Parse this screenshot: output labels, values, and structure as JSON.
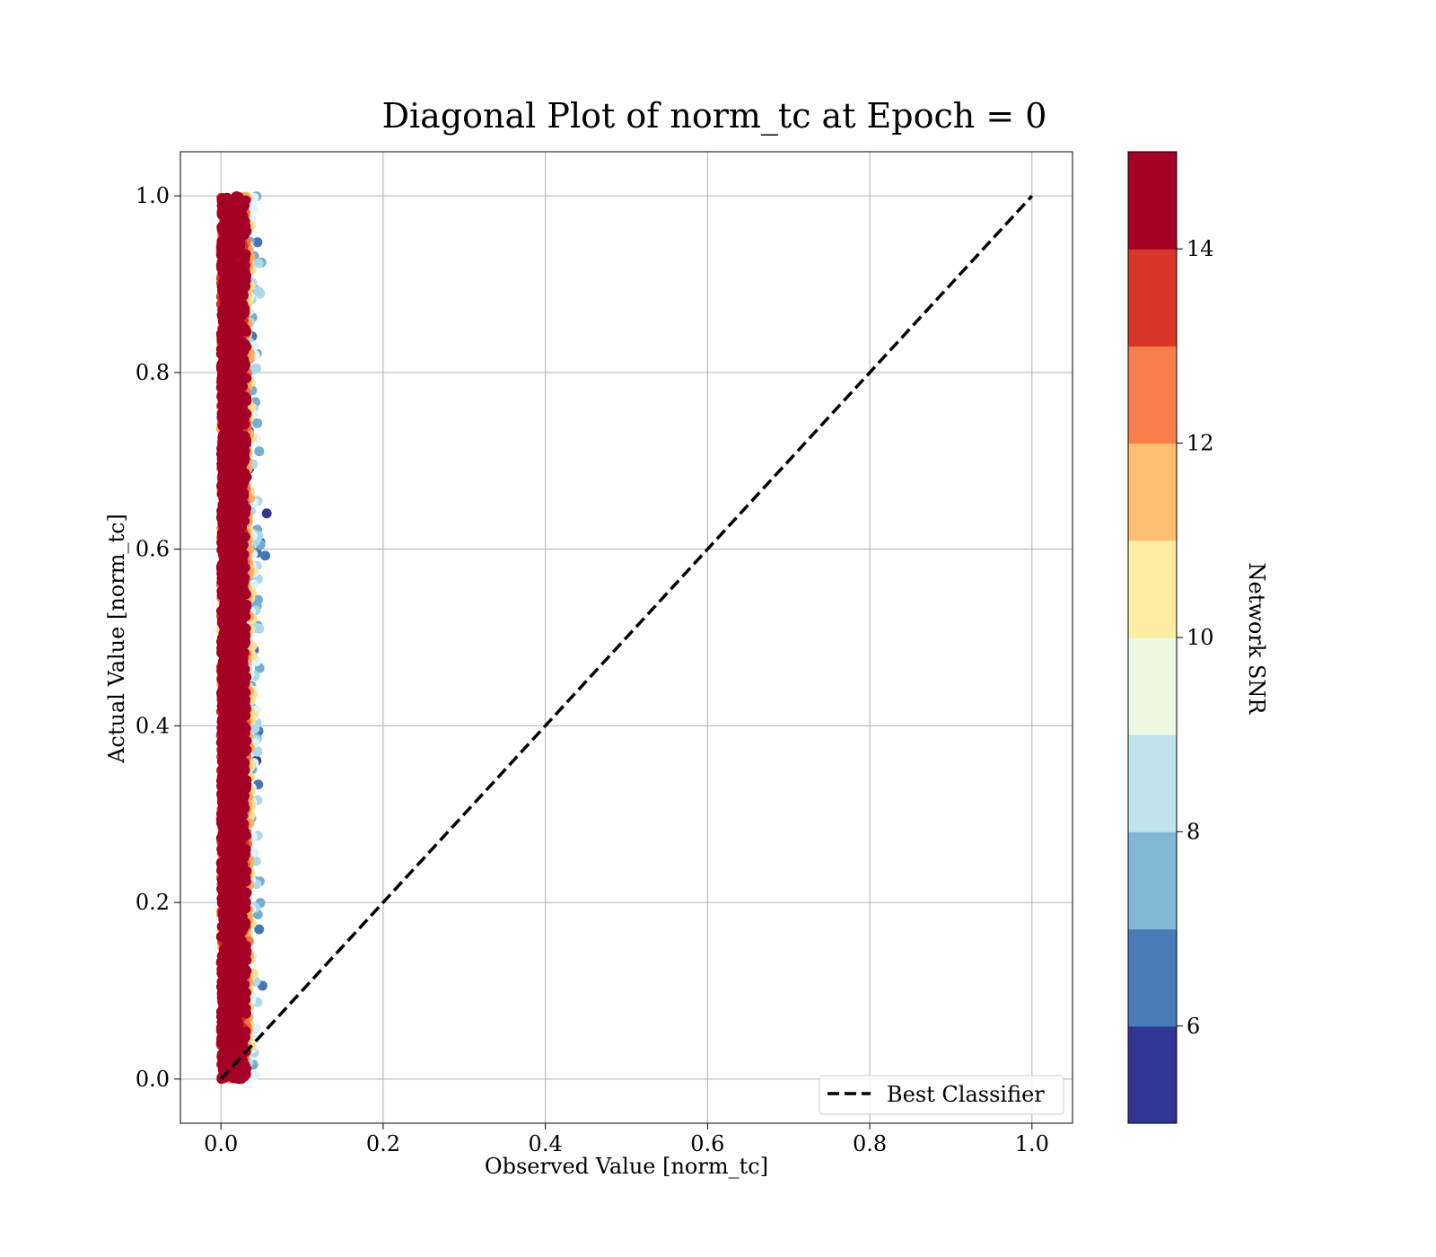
{
  "chart_data": {
    "type": "scatter",
    "title": "Diagonal Plot of norm_tc at Epoch = 0",
    "xlabel": "Observed Value [norm_tc]",
    "ylabel": "Actual Value [norm_tc]",
    "xlim": [
      -0.05,
      1.05
    ],
    "ylim": [
      -0.05,
      1.05
    ],
    "xticks": [
      "0.0",
      "0.2",
      "0.4",
      "0.6",
      "0.8",
      "1.0"
    ],
    "xtick_values": [
      0.0,
      0.2,
      0.4,
      0.6,
      0.8,
      1.0
    ],
    "yticks": [
      "0.0",
      "0.2",
      "0.4",
      "0.6",
      "0.8",
      "1.0"
    ],
    "ytick_values": [
      0.0,
      0.2,
      0.4,
      0.6,
      0.8,
      1.0
    ],
    "grid": true,
    "legend": {
      "placement": "lower-right",
      "entries": [
        "Best Classifier"
      ]
    },
    "reference_line": {
      "name": "Best Classifier",
      "style": "dashed",
      "color": "#000000",
      "x": [
        0,
        1
      ],
      "y": [
        0,
        1
      ]
    },
    "scatter_description": {
      "x_range": [
        0.0,
        0.06
      ],
      "y_range": [
        0.0,
        1.0
      ],
      "color_by": "Network SNR"
    },
    "colorbar": {
      "label": "Network SNR",
      "range": [
        5,
        15
      ],
      "ticks": [
        "6",
        "8",
        "10",
        "12",
        "14"
      ],
      "tick_values": [
        6,
        8,
        10,
        12,
        14
      ],
      "levels": [
        5,
        6,
        7,
        8,
        9,
        10,
        11,
        12,
        13,
        14,
        15
      ],
      "colors": [
        "#313695",
        "#4575b4",
        "#74add1",
        "#abd9e9",
        "#e0f3f8",
        "#fee090",
        "#fdae61",
        "#f46d43",
        "#d73027",
        "#a50026"
      ],
      "display_colors": [
        "#313695",
        "#4a7bb7",
        "#83b8d7",
        "#c0e3ec",
        "#edf7e1",
        "#feeca2",
        "#fdbe6f",
        "#f67f4b",
        "#da3627",
        "#a50026"
      ]
    }
  }
}
